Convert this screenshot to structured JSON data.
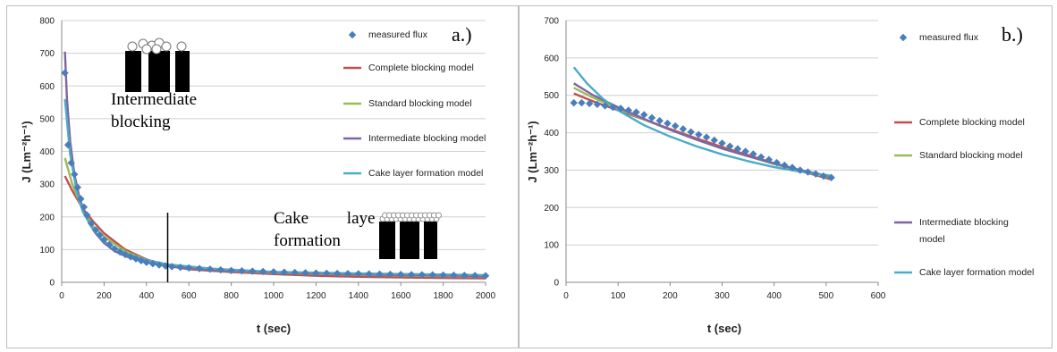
{
  "chart_data": [
    {
      "type": "line",
      "panel_label": "a.)",
      "xlabel": "t (sec)",
      "ylabel": "J (Lm⁻²h⁻¹)",
      "xlim": [
        0,
        2000
      ],
      "ylim": [
        0,
        800
      ],
      "x_ticks": [
        0,
        200,
        400,
        600,
        800,
        1000,
        1200,
        1400,
        1600,
        1800,
        2000
      ],
      "y_ticks": [
        0,
        100,
        200,
        300,
        400,
        500,
        600,
        700,
        800
      ],
      "grid": "horizontal",
      "legend_position": "right",
      "divider_x": 500,
      "annotations": [
        {
          "lines": [
            "Intermediate",
            "blocking"
          ]
        },
        {
          "lines": [
            "Cake         laye",
            "formation"
          ]
        }
      ],
      "series": [
        {
          "name": "measured flux",
          "style": "markers",
          "color": "#4a7ebb",
          "x": [
            15,
            30,
            45,
            60,
            75,
            90,
            105,
            120,
            140,
            160,
            180,
            200,
            225,
            250,
            275,
            300,
            325,
            350,
            375,
            400,
            430,
            460,
            490,
            520,
            560,
            600,
            650,
            700,
            750,
            800,
            850,
            900,
            950,
            1000,
            1050,
            1100,
            1150,
            1200,
            1250,
            1300,
            1350,
            1400,
            1450,
            1500,
            1550,
            1600,
            1650,
            1700,
            1750,
            1800,
            1850,
            1900,
            1950,
            2000
          ],
          "y": [
            640,
            420,
            365,
            330,
            290,
            255,
            230,
            205,
            180,
            160,
            145,
            130,
            115,
            102,
            93,
            85,
            78,
            72,
            66,
            61,
            57,
            53,
            50,
            48,
            46,
            44,
            42,
            40,
            38,
            36,
            35,
            34,
            33,
            32,
            31,
            30,
            29,
            28,
            27.5,
            27,
            26.5,
            26,
            25.5,
            25,
            24.5,
            24,
            23.5,
            23,
            22.5,
            22,
            21.5,
            21,
            20.5,
            20
          ]
        },
        {
          "name": "Complete blocking model",
          "style": "line",
          "color": "#c0504d",
          "x": [
            15,
            50,
            100,
            150,
            200,
            300,
            400,
            500,
            600,
            800,
            1000,
            1200,
            1400,
            1600,
            1800,
            2000
          ],
          "y": [
            325,
            280,
            225,
            185,
            150,
            100,
            70,
            50,
            40,
            31,
            25,
            20,
            17,
            15,
            13,
            12
          ]
        },
        {
          "name": "Standard blocking model",
          "style": "line",
          "color": "#9bbb59",
          "x": [
            15,
            50,
            100,
            150,
            200,
            300,
            400,
            500,
            600,
            800,
            1000,
            1200,
            1400,
            1600,
            1800,
            2000
          ],
          "y": [
            380,
            300,
            220,
            170,
            140,
            95,
            68,
            52,
            43,
            34,
            29,
            26,
            23,
            21,
            19,
            18
          ]
        },
        {
          "name": "Intermediate blocking model",
          "style": "line",
          "color": "#8064a2",
          "x": [
            15,
            25,
            40,
            60,
            80,
            100,
            130,
            160,
            200,
            250,
            300,
            400,
            500,
            700,
            1000,
            1400,
            2000
          ],
          "y": [
            705,
            560,
            430,
            330,
            270,
            225,
            180,
            150,
            120,
            95,
            80,
            60,
            50,
            38,
            30,
            24,
            19
          ]
        },
        {
          "name": "Cake layer formation model",
          "style": "line",
          "color": "#4bacc6",
          "x": [
            15,
            40,
            70,
            100,
            150,
            200,
            300,
            400,
            500,
            700,
            1000,
            1400,
            2000
          ],
          "y": [
            560,
            390,
            280,
            215,
            160,
            125,
            88,
            68,
            55,
            42,
            32,
            27,
            22
          ]
        }
      ]
    },
    {
      "type": "line",
      "panel_label": "b.)",
      "xlabel": "t (sec)",
      "ylabel": "J (Lm⁻²h⁻¹)",
      "xlim": [
        0,
        600
      ],
      "ylim": [
        0,
        700
      ],
      "x_ticks": [
        0,
        100,
        200,
        300,
        400,
        500,
        600
      ],
      "y_ticks": [
        0,
        100,
        200,
        300,
        400,
        500,
        600,
        700
      ],
      "grid": "horizontal",
      "legend_position": "right",
      "series": [
        {
          "name": "measured flux",
          "style": "markers",
          "color": "#4a7ebb",
          "x": [
            15,
            30,
            45,
            60,
            75,
            90,
            105,
            120,
            135,
            150,
            165,
            180,
            195,
            210,
            225,
            240,
            255,
            270,
            285,
            300,
            315,
            330,
            345,
            360,
            375,
            390,
            405,
            420,
            435,
            450,
            465,
            480,
            495,
            510
          ],
          "y": [
            480,
            480,
            478,
            476,
            472,
            468,
            465,
            460,
            455,
            448,
            440,
            432,
            425,
            418,
            410,
            402,
            395,
            388,
            380,
            372,
            364,
            357,
            350,
            343,
            335,
            328,
            320,
            313,
            307,
            300,
            295,
            290,
            284,
            280
          ]
        },
        {
          "name": "Complete blocking model",
          "style": "line",
          "color": "#c0504d",
          "x": [
            15,
            50,
            100,
            150,
            200,
            250,
            300,
            350,
            400,
            450,
            510
          ],
          "y": [
            505,
            485,
            460,
            435,
            410,
            385,
            362,
            340,
            318,
            298,
            275
          ]
        },
        {
          "name": "Standard blocking model",
          "style": "line",
          "color": "#9bbb59",
          "x": [
            15,
            50,
            100,
            150,
            200,
            250,
            300,
            350,
            400,
            450,
            510
          ],
          "y": [
            520,
            495,
            465,
            435,
            408,
            382,
            358,
            337,
            316,
            298,
            280
          ]
        },
        {
          "name": "Intermediate blocking model",
          "style": "line",
          "color": "#8064a2",
          "x": [
            15,
            50,
            100,
            150,
            200,
            250,
            300,
            350,
            400,
            450,
            510
          ],
          "y": [
            532,
            502,
            468,
            437,
            408,
            382,
            358,
            337,
            318,
            300,
            283
          ]
        },
        {
          "name": "Cake layer formation model",
          "style": "line",
          "color": "#4bacc6",
          "x": [
            15,
            40,
            70,
            100,
            150,
            200,
            250,
            300,
            350,
            400,
            450,
            510
          ],
          "y": [
            575,
            532,
            492,
            460,
            420,
            390,
            364,
            342,
            324,
            308,
            296,
            285
          ]
        }
      ]
    }
  ]
}
